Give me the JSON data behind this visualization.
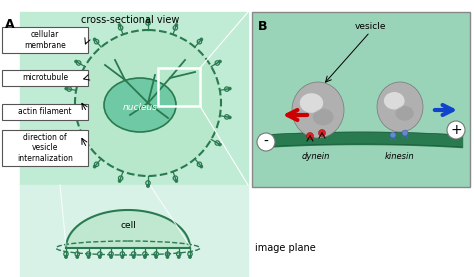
{
  "bg_color": "#ffffff",
  "green_light": "#c8edd8",
  "green_panel": "#b0dfc8",
  "green_cell_fill": "#a8dcbe",
  "green_nucleus": "#6dc9a8",
  "green_dark": "#2a7a50",
  "green_tube": "#2a7a50",
  "green_b_panel": "#90d4b0",
  "green_bottom_panel": "#d0eed8",
  "label_A": "A",
  "label_B": "B",
  "label_cross": "cross-sectional view",
  "label_nucleus": "nucleus",
  "label_cell": "cell",
  "label_image_plane": "image plane",
  "label_vesicle": "vesicle",
  "label_dynein": "dynein",
  "label_kinesin": "kinesin",
  "labels_left": [
    "cellular\nmembrane",
    "microtubule",
    "actin filament",
    "direction of\nvesicle\ninternalization"
  ],
  "arrow_red_color": "#cc0000",
  "arrow_blue_color": "#1144cc",
  "fig_w": 4.74,
  "fig_h": 2.77,
  "dpi": 100
}
